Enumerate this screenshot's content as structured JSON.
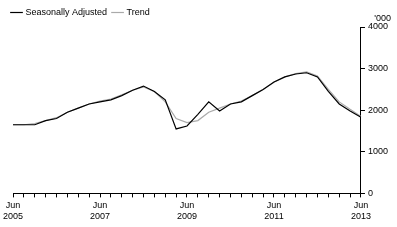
{
  "chart_data": {
    "type": "line",
    "ylabel": "'000",
    "categories": [
      "Jun 2005",
      null,
      null,
      null,
      null,
      null,
      null,
      null,
      "Jun 2007",
      null,
      null,
      null,
      null,
      null,
      null,
      null,
      "Jun 2009",
      null,
      null,
      null,
      null,
      null,
      null,
      null,
      "Jun 2011",
      null,
      null,
      null,
      null,
      null,
      null,
      null,
      "Jun 2013"
    ],
    "series": [
      {
        "name": "Seasonally Adjusted",
        "color": "#000000",
        "values": [
          1650,
          1650,
          1650,
          1750,
          1800,
          1950,
          2050,
          2150,
          2200,
          2250,
          2350,
          2480,
          2580,
          2450,
          2250,
          1550,
          1620,
          1900,
          2200,
          1980,
          2150,
          2200,
          2350,
          2500,
          2680,
          2800,
          2870,
          2900,
          2800,
          2450,
          2150,
          1980,
          1830
        ]
      },
      {
        "name": "Trend",
        "color": "#aaaaaa",
        "values": [
          1650,
          1650,
          1680,
          1750,
          1820,
          1950,
          2050,
          2150,
          2220,
          2270,
          2370,
          2480,
          2560,
          2450,
          2200,
          1800,
          1700,
          1750,
          1950,
          2050,
          2150,
          2220,
          2350,
          2500,
          2670,
          2800,
          2880,
          2920,
          2820,
          2500,
          2200,
          2020,
          1850
        ]
      }
    ],
    "ylim": [
      0,
      4000
    ],
    "yticks": [
      0,
      1000,
      2000,
      3000,
      4000
    ],
    "grid": false,
    "legend": "top-left"
  }
}
